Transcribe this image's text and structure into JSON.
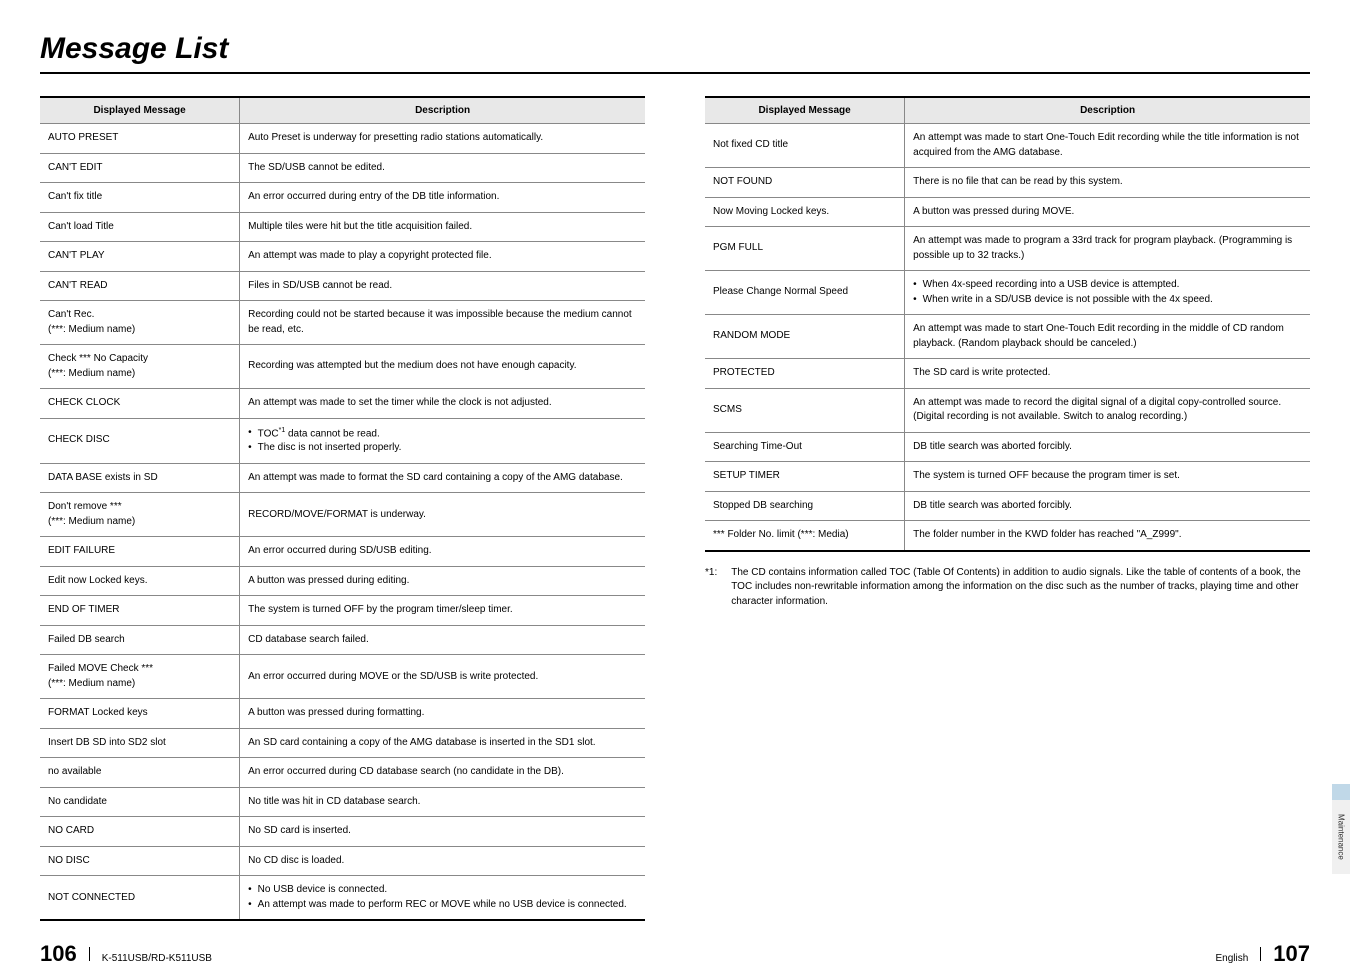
{
  "title": "Message List",
  "headers": {
    "msg": "Displayed Message",
    "desc": "Description"
  },
  "left_rows": [
    {
      "m": "AUTO PRESET",
      "d": "Auto Preset is underway for presetting radio stations automatically."
    },
    {
      "m": "CAN'T EDIT",
      "d": "The SD/USB cannot be edited."
    },
    {
      "m": "Can't fix title",
      "d": "An error occurred during entry of the DB title information."
    },
    {
      "m": "Can't load Title",
      "d": "Multiple tiles were hit but the title acquisition failed."
    },
    {
      "m": "CAN'T PLAY",
      "d": "An attempt was made to play a copyright protected file."
    },
    {
      "m": "CAN'T READ",
      "d": "Files in SD/USB cannot be read."
    },
    {
      "m": "Can't Rec.\n(***: Medium name)",
      "d": "Recording could not be started because it was impossible because the medium cannot be read, etc."
    },
    {
      "m": "Check *** No Capacity\n(***: Medium name)",
      "d": "Recording was attempted but the medium does not have enough capacity."
    },
    {
      "m": "CHECK CLOCK",
      "d": "An attempt was made to set the timer while the clock is not adjusted."
    },
    {
      "m": "CHECK DISC",
      "bullets": [
        "TOC<sup>*1</sup> data cannot be read.",
        "The disc is not inserted properly."
      ]
    },
    {
      "m": "DATA BASE exists in SD",
      "d": "An attempt was made to format the SD card containing a copy of the AMG database."
    },
    {
      "m": "Don't remove ***\n(***: Medium name)",
      "d": "RECORD/MOVE/FORMAT is underway."
    },
    {
      "m": "EDIT FAILURE",
      "d": "An error occurred during SD/USB editing."
    },
    {
      "m": "Edit now Locked keys.",
      "d": "A button was pressed during editing."
    },
    {
      "m": "END OF TIMER",
      "d": "The system is turned OFF by the program timer/sleep timer."
    },
    {
      "m": "Failed DB search",
      "d": "CD database search failed."
    },
    {
      "m": "Failed MOVE Check ***\n(***: Medium name)",
      "d": "An error occurred during MOVE or the SD/USB is write protected."
    },
    {
      "m": "FORMAT Locked keys",
      "d": "A button was pressed during formatting."
    },
    {
      "m": "Insert DB SD into SD2 slot",
      "d": "An SD card containing a copy of the AMG database is inserted in the SD1 slot."
    },
    {
      "m": "no available",
      "d": "An error occurred during CD database search (no candidate in the DB)."
    },
    {
      "m": "No candidate",
      "d": "No title was hit in CD database search."
    },
    {
      "m": "NO CARD",
      "d": "No SD card is inserted."
    },
    {
      "m": "NO DISC",
      "d": "No CD disc is loaded."
    },
    {
      "m": "NOT CONNECTED",
      "bullets": [
        "No USB device is connected.",
        "An attempt was made to perform REC or MOVE while no USB device is connected."
      ]
    }
  ],
  "right_rows": [
    {
      "m": "Not fixed CD title",
      "d": "An attempt was made to start One-Touch Edit recording while the title information is not acquired from the AMG database."
    },
    {
      "m": "NOT FOUND",
      "d": "There is no file that can be read by this system."
    },
    {
      "m": "Now Moving Locked keys.",
      "d": "A button was pressed during MOVE."
    },
    {
      "m": "PGM FULL",
      "d": "An attempt was made to program a 33rd track for program playback. (Programming is possible up to 32 tracks.)"
    },
    {
      "m": "Please Change Normal Speed",
      "bullets": [
        "When 4x-speed recording into a USB device is attempted.",
        "When write in a SD/USB device is not possible with the 4x speed."
      ]
    },
    {
      "m": "RANDOM MODE",
      "d": "An attempt was made to start One-Touch Edit recording in the middle of CD random playback. (Random playback should be canceled.)"
    },
    {
      "m": "PROTECTED",
      "d": "The SD card is write protected."
    },
    {
      "m": "SCMS",
      "d": "An attempt was made to record the digital signal of a digital copy-controlled source. (Digital recording is not available. Switch to analog recording.)"
    },
    {
      "m": "Searching Time-Out",
      "d": "DB title search was aborted forcibly."
    },
    {
      "m": "SETUP TIMER",
      "d": "The system is turned OFF because the program timer is set."
    },
    {
      "m": "Stopped DB searching",
      "d": "DB title search was aborted forcibly."
    },
    {
      "m": "*** Folder No. limit (***: Media)",
      "d": "The folder number in the KWD folder has reached \"A_Z999\"."
    }
  ],
  "footnote": {
    "label": "*1:",
    "text": "The CD contains information called TOC (Table Of Contents) in addition to audio signals. Like the table of contents of a book, the TOC includes non-rewritable information among the information on the disc such as the number of tracks, playing time and other character information."
  },
  "side_tab": "Maintenance",
  "footer": {
    "left_page": "106",
    "model": "K-511USB/RD-K511USB",
    "lang": "English",
    "right_page": "107"
  }
}
